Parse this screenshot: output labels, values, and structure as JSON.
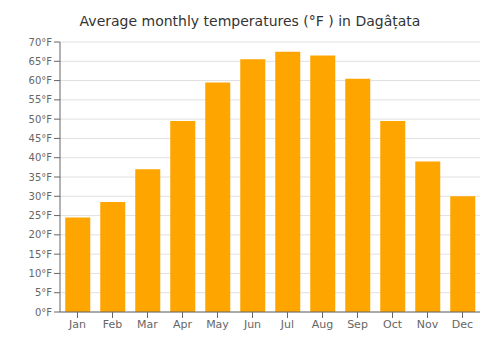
{
  "chart_data": {
    "type": "bar",
    "title": "Average monthly temperatures (°F ) in Dagâțata",
    "categories": [
      "Jan",
      "Feb",
      "Mar",
      "Apr",
      "May",
      "Jun",
      "Jul",
      "Aug",
      "Sep",
      "Oct",
      "Nov",
      "Dec"
    ],
    "values": [
      24.5,
      28.5,
      37,
      49.5,
      59.5,
      65.5,
      67.5,
      66.5,
      60.5,
      49.5,
      39,
      30
    ],
    "color": "#FFA500",
    "ylim": [
      0,
      70
    ],
    "yticks": [
      {
        "value": 0,
        "label": "0°F"
      },
      {
        "value": 5,
        "label": "5°F"
      },
      {
        "value": 10,
        "label": "10°F"
      },
      {
        "value": 15,
        "label": "15°F"
      },
      {
        "value": 20,
        "label": "20°F"
      },
      {
        "value": 25,
        "label": "25°F"
      },
      {
        "value": 30,
        "label": "30°F"
      },
      {
        "value": 35,
        "label": "35°F"
      },
      {
        "value": 40,
        "label": "40°F"
      },
      {
        "value": 45,
        "label": "45°F"
      },
      {
        "value": 50,
        "label": "50°F"
      },
      {
        "value": 55,
        "label": "55°F"
      },
      {
        "value": 60,
        "label": "60°F"
      },
      {
        "value": 65,
        "label": "65°F"
      },
      {
        "value": 70,
        "label": "70°F"
      }
    ],
    "grid": true
  }
}
